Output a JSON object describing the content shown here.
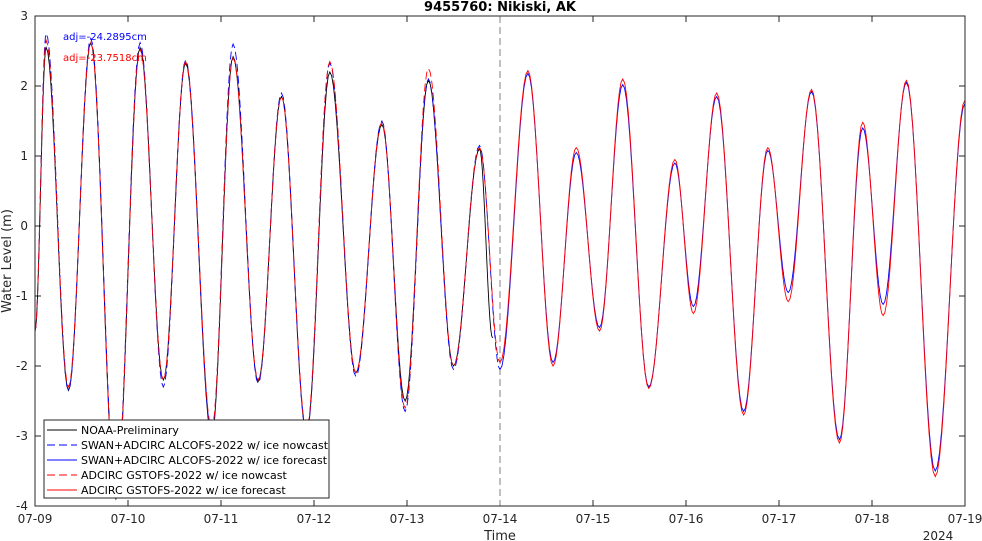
{
  "chart_data": {
    "type": "line",
    "title": "9455760: Nikiski, AK",
    "xlabel": "Time",
    "ylabel": "Water Level (m)",
    "year_label": "2024",
    "xlim": [
      "07-09",
      "07-19"
    ],
    "ylim": [
      -4,
      3
    ],
    "xticks": [
      "07-09",
      "07-10",
      "07-11",
      "07-12",
      "07-13",
      "07-14",
      "07-15",
      "07-16",
      "07-17",
      "07-18",
      "07-19"
    ],
    "yticks": [
      -4,
      -3,
      -2,
      -1,
      0,
      1,
      2,
      3
    ],
    "grid": false,
    "legend_position": "bottom-left",
    "annotations": [
      {
        "text": "adj=-24.2895cm",
        "color": "#0000ff"
      },
      {
        "text": "adj=-23.7518cm",
        "color": "#ff0000"
      }
    ],
    "vline": {
      "x": "07-14",
      "style": "dashed",
      "color": "#808080"
    },
    "extrema_date_unit": "day offset from 07-09 00:00",
    "series": [
      {
        "name": "NOAA-Preliminary",
        "color": "#000000",
        "style": "solid",
        "extrema": [
          [
            0.0,
            -1.5
          ],
          [
            0.12,
            2.55
          ],
          [
            0.36,
            -2.35
          ],
          [
            0.6,
            2.62
          ],
          [
            0.87,
            -3.9
          ],
          [
            1.13,
            2.55
          ],
          [
            1.38,
            -2.2
          ],
          [
            1.62,
            2.33
          ],
          [
            1.9,
            -3.0
          ],
          [
            2.13,
            2.42
          ],
          [
            2.4,
            -2.22
          ],
          [
            2.65,
            1.85
          ],
          [
            2.92,
            -2.95
          ],
          [
            3.17,
            2.2
          ],
          [
            3.45,
            -2.1
          ],
          [
            3.73,
            1.45
          ],
          [
            3.98,
            -2.5
          ],
          [
            4.23,
            2.08
          ],
          [
            4.5,
            -2.0
          ],
          [
            4.78,
            1.1
          ],
          [
            4.92,
            -1.6
          ]
        ]
      },
      {
        "name": "SWAN+ADCIRC ALCOFS-2022 w/ ice nowcast",
        "color": "#0000ff",
        "style": "dashed",
        "extrema": [
          [
            0.0,
            -1.5
          ],
          [
            0.12,
            2.75
          ],
          [
            0.36,
            -2.35
          ],
          [
            0.6,
            2.68
          ],
          [
            0.87,
            -3.8
          ],
          [
            1.13,
            2.62
          ],
          [
            1.38,
            -2.3
          ],
          [
            1.62,
            2.37
          ],
          [
            1.9,
            -2.95
          ],
          [
            2.13,
            2.6
          ],
          [
            2.4,
            -2.25
          ],
          [
            2.65,
            1.9
          ],
          [
            2.92,
            -2.95
          ],
          [
            3.17,
            2.33
          ],
          [
            3.45,
            -2.15
          ],
          [
            3.73,
            1.5
          ],
          [
            3.98,
            -2.65
          ],
          [
            4.23,
            2.1
          ],
          [
            4.5,
            -2.05
          ],
          [
            4.78,
            1.15
          ],
          [
            5.0,
            -2.05
          ]
        ]
      },
      {
        "name": "SWAN+ADCIRC ALCOFS-2022 w/ ice forecast",
        "color": "#0000ff",
        "style": "solid",
        "extrema": [
          [
            5.0,
            -2.05
          ],
          [
            5.3,
            2.18
          ],
          [
            5.57,
            -1.95
          ],
          [
            5.82,
            1.05
          ],
          [
            6.07,
            -1.45
          ],
          [
            6.32,
            2.02
          ],
          [
            6.6,
            -2.3
          ],
          [
            6.88,
            0.9
          ],
          [
            7.08,
            -1.15
          ],
          [
            7.33,
            1.85
          ],
          [
            7.62,
            -2.65
          ],
          [
            7.88,
            1.08
          ],
          [
            8.1,
            -0.95
          ],
          [
            8.35,
            1.92
          ],
          [
            8.65,
            -3.05
          ],
          [
            8.9,
            1.4
          ],
          [
            9.12,
            -1.12
          ],
          [
            9.37,
            2.05
          ],
          [
            9.68,
            -3.5
          ],
          [
            10.0,
            1.75
          ]
        ]
      },
      {
        "name": "ADCIRC GSTOFS-2022 w/ ice nowcast",
        "color": "#ff0000",
        "style": "dashed",
        "extrema": [
          [
            0.0,
            -1.5
          ],
          [
            0.12,
            2.65
          ],
          [
            0.36,
            -2.3
          ],
          [
            0.6,
            2.62
          ],
          [
            0.87,
            -3.85
          ],
          [
            1.13,
            2.52
          ],
          [
            1.38,
            -2.2
          ],
          [
            1.62,
            2.35
          ],
          [
            1.9,
            -2.9
          ],
          [
            2.13,
            2.4
          ],
          [
            2.4,
            -2.2
          ],
          [
            2.65,
            1.85
          ],
          [
            2.92,
            -2.9
          ],
          [
            3.17,
            2.35
          ],
          [
            3.45,
            -2.1
          ],
          [
            3.73,
            1.48
          ],
          [
            3.98,
            -2.6
          ],
          [
            4.23,
            2.25
          ],
          [
            4.5,
            -2.0
          ],
          [
            4.78,
            1.12
          ],
          [
            5.0,
            -1.95
          ]
        ]
      },
      {
        "name": "ADCIRC GSTOFS-2022 w/ ice forecast",
        "color": "#ff0000",
        "style": "solid",
        "extrema": [
          [
            5.0,
            -1.95
          ],
          [
            5.3,
            2.22
          ],
          [
            5.57,
            -2.0
          ],
          [
            5.82,
            1.12
          ],
          [
            6.07,
            -1.5
          ],
          [
            6.32,
            2.1
          ],
          [
            6.6,
            -2.32
          ],
          [
            6.88,
            0.95
          ],
          [
            7.08,
            -1.25
          ],
          [
            7.33,
            1.9
          ],
          [
            7.62,
            -2.7
          ],
          [
            7.88,
            1.12
          ],
          [
            8.1,
            -1.08
          ],
          [
            8.35,
            1.95
          ],
          [
            8.65,
            -3.1
          ],
          [
            8.9,
            1.48
          ],
          [
            9.12,
            -1.28
          ],
          [
            9.37,
            2.08
          ],
          [
            9.68,
            -3.58
          ],
          [
            10.0,
            1.8
          ]
        ]
      }
    ]
  }
}
